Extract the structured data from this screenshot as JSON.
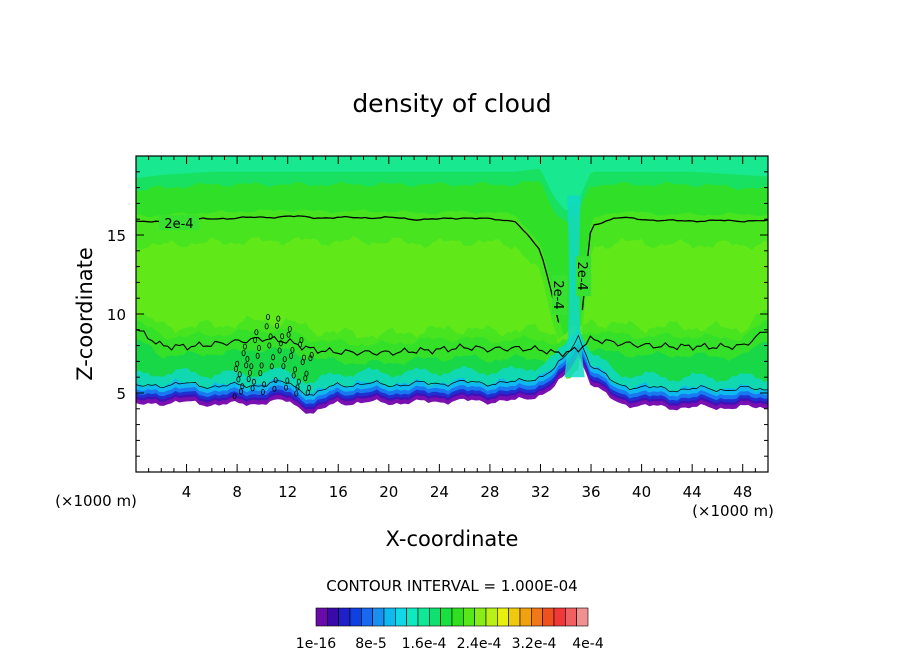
{
  "chart_data": {
    "type": "heatmap",
    "title": "density of cloud",
    "xlabel": "X-coordinate",
    "ylabel": "Z-coordinate",
    "x_unit_left": "(×1000 m)",
    "x_unit_right": "(×1000 m)",
    "xlim": [
      0,
      50
    ],
    "ylim": [
      0,
      20
    ],
    "xticks": [
      4,
      8,
      12,
      16,
      20,
      24,
      28,
      32,
      36,
      40,
      44,
      48
    ],
    "yticks": [
      5,
      10,
      15
    ],
    "contour_interval_text": "CONTOUR INTERVAL = 1.000E-04",
    "contour_labels": [
      "2e-4",
      "2e-4",
      "2e-4"
    ],
    "colorbar": {
      "tick_labels": [
        "1e-16",
        "8e-5",
        "1.6e-4",
        "2.4e-4",
        "3.2e-4",
        "4e-4"
      ],
      "colors": [
        "#6a0aa8",
        "#3a0aa8",
        "#2020c8",
        "#1040e0",
        "#1868f0",
        "#1890f0",
        "#10b8f0",
        "#10d8e8",
        "#10e8c0",
        "#10e898",
        "#10e070",
        "#18e040",
        "#30e020",
        "#58e818",
        "#88ec18",
        "#b8f018",
        "#e8f010",
        "#f0c810",
        "#f0a010",
        "#f07818",
        "#f05020",
        "#f03838",
        "#f06060",
        "#f09090"
      ]
    },
    "profiles": {
      "x": [
        0,
        2,
        4,
        6,
        8,
        10,
        12,
        14,
        16,
        18,
        20,
        22,
        24,
        26,
        28,
        30,
        32,
        33,
        34,
        35,
        36,
        38,
        40,
        42,
        44,
        46,
        48,
        50
      ],
      "cloud_base": [
        4.3,
        4.5,
        4.5,
        4.4,
        4.4,
        4.5,
        4.6,
        3.8,
        4.5,
        4.5,
        4.5,
        4.5,
        4.6,
        4.6,
        4.6,
        4.6,
        5.0,
        5.4,
        6.2,
        7.6,
        5.7,
        4.5,
        4.3,
        4.2,
        4.2,
        4.2,
        4.2,
        4.2
      ],
      "upper_contour": [
        15.9,
        15.8,
        16.0,
        16.0,
        16.1,
        16.1,
        16.2,
        16.1,
        16.1,
        16.1,
        16.1,
        16.0,
        16.0,
        16.1,
        16.0,
        15.9,
        14.0,
        11.0,
        7.6,
        7.8,
        15.6,
        16.1,
        16.0,
        15.9,
        15.9,
        15.9,
        15.9,
        15.9
      ],
      "lower_contour": [
        9.0,
        8.0,
        8.0,
        8.1,
        8.2,
        8.4,
        8.3,
        7.8,
        7.6,
        7.5,
        7.5,
        7.7,
        7.8,
        7.9,
        7.7,
        7.8,
        7.8,
        7.6,
        7.6,
        7.8,
        8.4,
        8.1,
        8.0,
        8.0,
        8.0,
        7.9,
        7.9,
        9.0
      ],
      "top_bright": [
        18.6,
        18.8,
        18.9,
        19.0,
        19.0,
        19.0,
        19.0,
        19.0,
        19.0,
        19.0,
        19.0,
        19.0,
        19.0,
        19.0,
        19.0,
        19.0,
        19.2,
        17.5,
        16.5,
        17.2,
        19.0,
        19.0,
        19.0,
        19.0,
        19.0,
        18.9,
        18.8,
        18.7
      ]
    }
  }
}
